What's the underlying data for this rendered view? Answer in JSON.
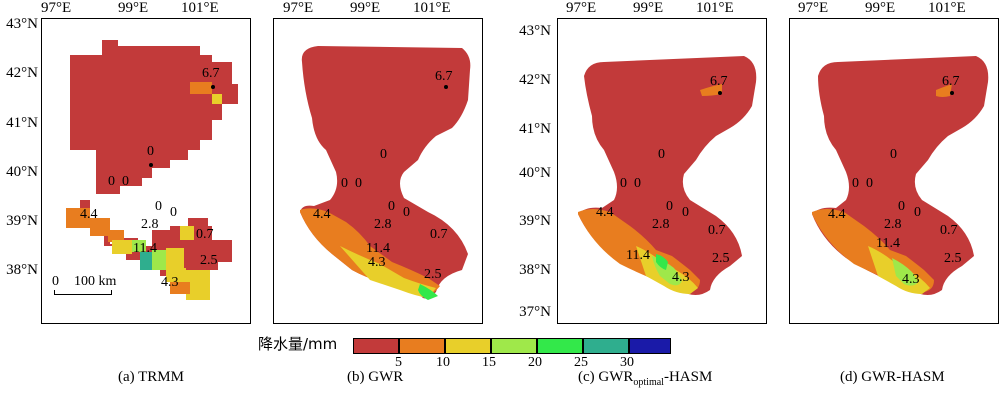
{
  "lon_labels": [
    "97°E",
    "99°E",
    "101°E"
  ],
  "lat_labels": [
    "43°N",
    "42°N",
    "41°N",
    "40°N",
    "39°N",
    "38°N",
    "37°N"
  ],
  "panels": [
    {
      "id": "a",
      "caption": "(a) TRMM",
      "stations": [
        "6.7",
        "0",
        "0",
        "0",
        "4.4",
        "0",
        "2.8",
        "0",
        "0.7",
        "11.4",
        "2.5",
        "4.3"
      ]
    },
    {
      "id": "b",
      "caption": "(b) GWR",
      "stations": [
        "6.7",
        "0",
        "0",
        "0",
        "4.4",
        "0",
        "2.8",
        "0",
        "0.7",
        "11.4",
        "2.5",
        "4.3"
      ]
    },
    {
      "id": "c",
      "caption_pre": "(c) GWR",
      "caption_sub": "optimal",
      "caption_post": "-HASM",
      "stations": [
        "6.7",
        "0",
        "0",
        "0",
        "4.4",
        "0",
        "2.8",
        "0",
        "0.7",
        "11.4",
        "2.5",
        "4.3"
      ]
    },
    {
      "id": "d",
      "caption": "(d) GWR-HASM",
      "stations": [
        "6.7",
        "0",
        "0",
        "0",
        "4.4",
        "0",
        "2.8",
        "0",
        "0.7",
        "11.4",
        "2.5",
        "4.3"
      ]
    }
  ],
  "scale_bar": {
    "zero": "0",
    "label": "100 km"
  },
  "legend": {
    "title": "降水量/mm",
    "ticks": [
      "5",
      "10",
      "15",
      "20",
      "25",
      "30"
    ],
    "colors": [
      "#c23a3a",
      "#e87d1f",
      "#e8cf2a",
      "#9fe84a",
      "#33e84a",
      "#2fae8e",
      "#1a1aa8"
    ]
  }
}
